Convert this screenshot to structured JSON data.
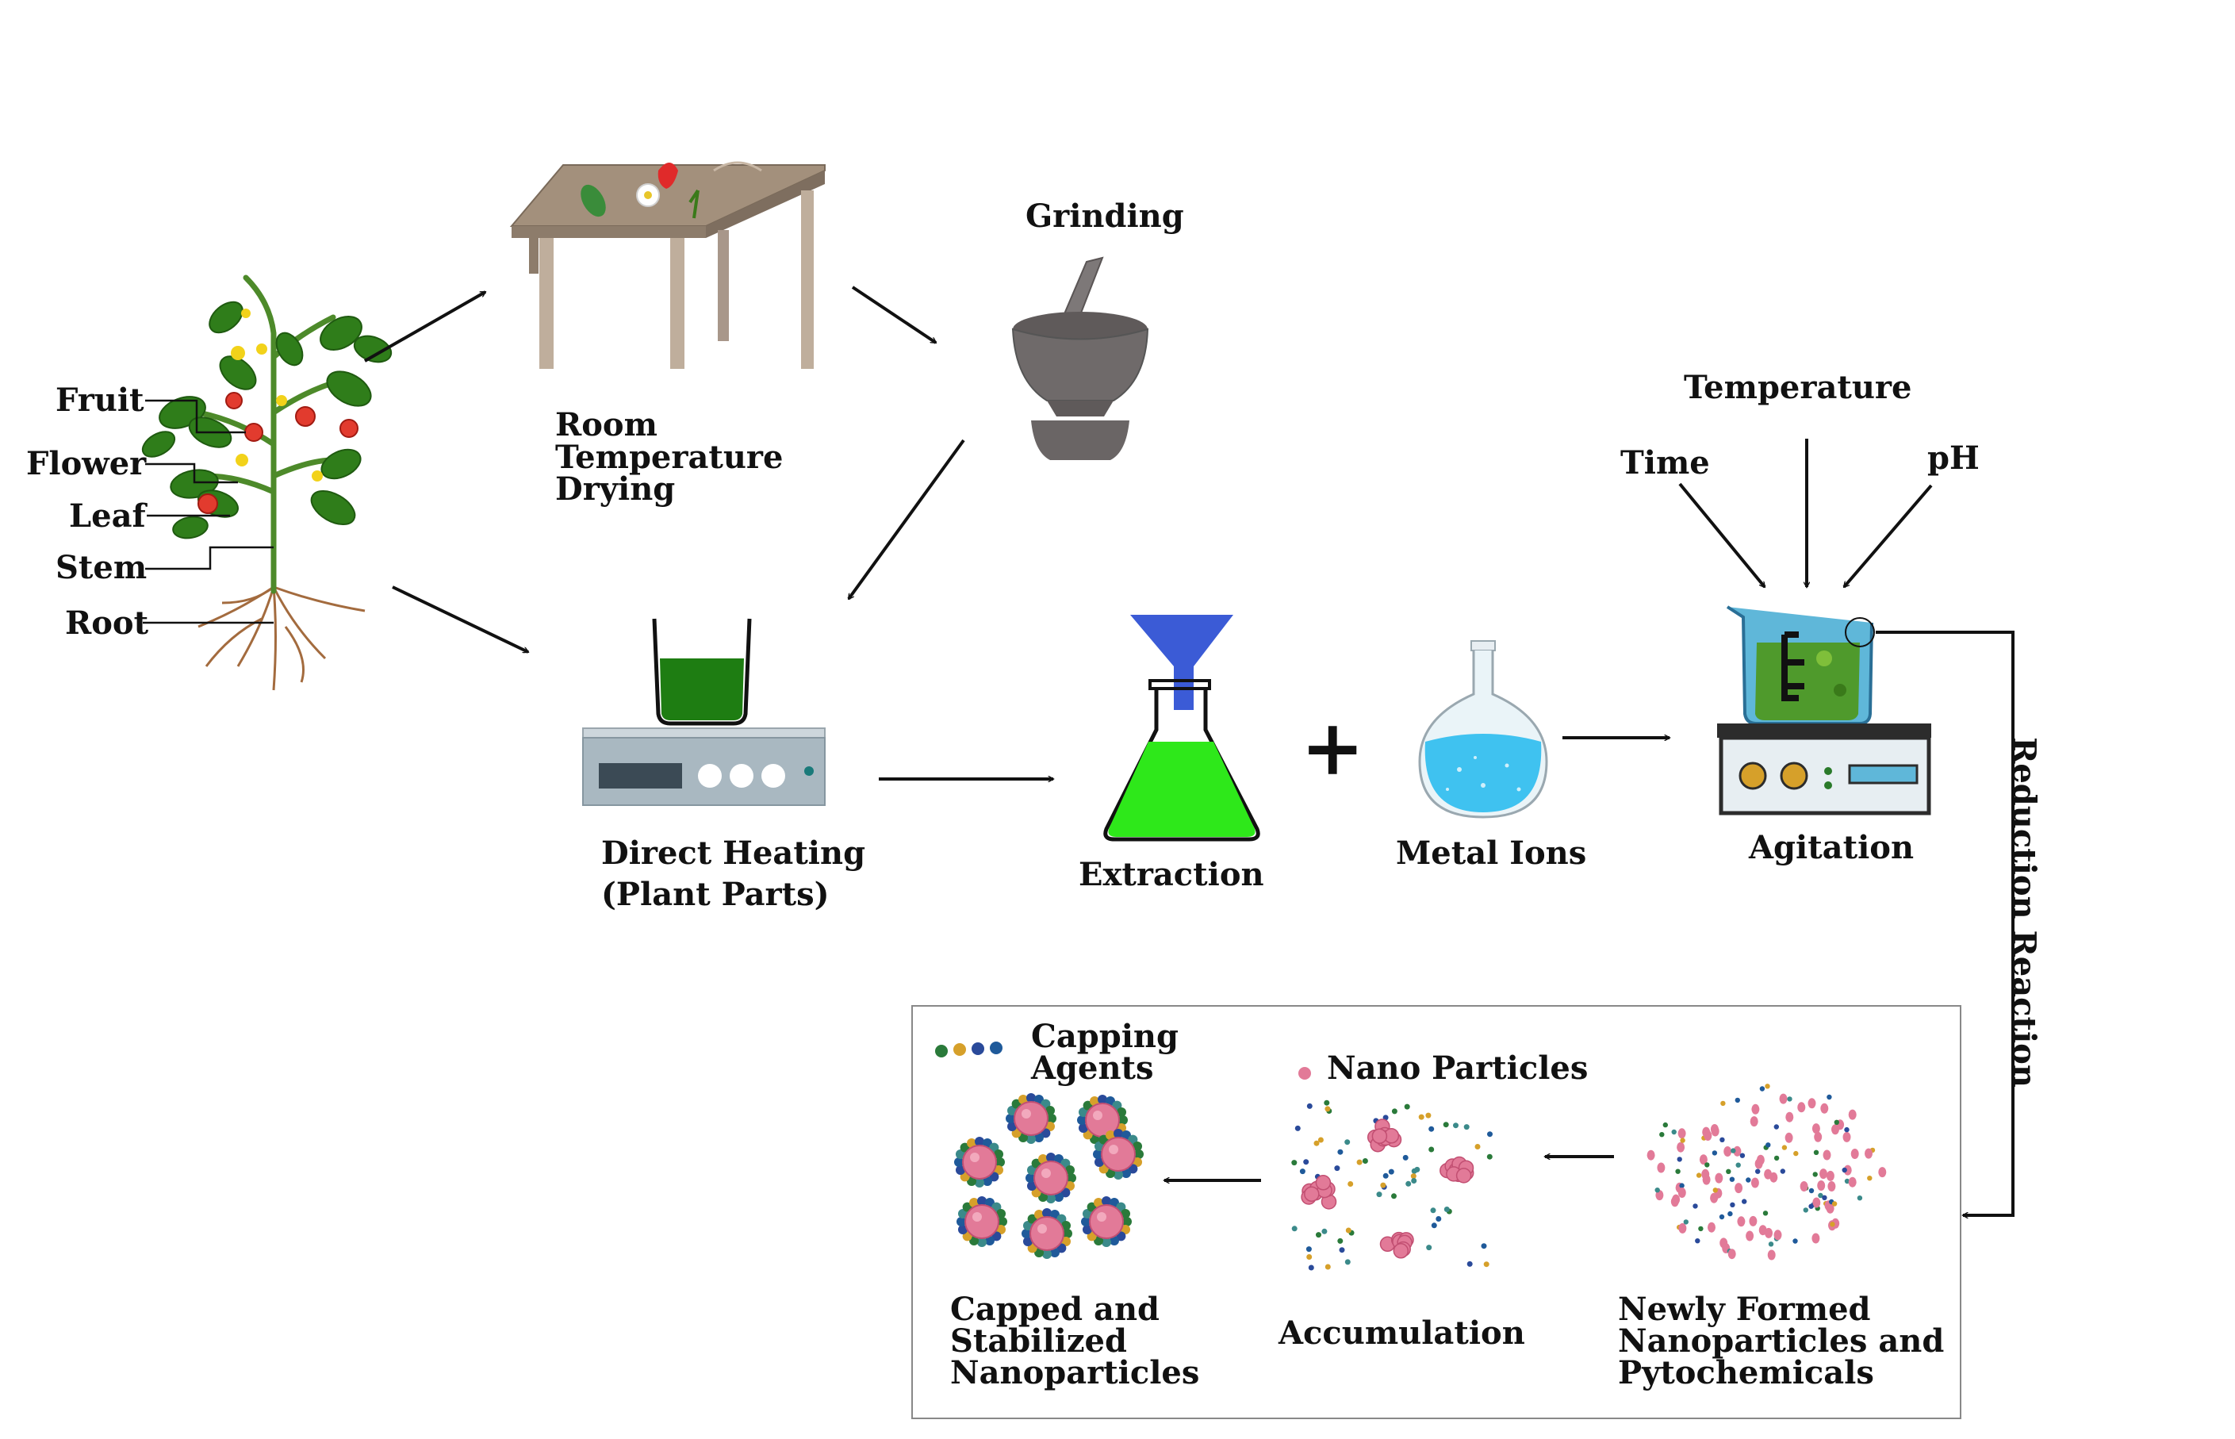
{
  "labels": {
    "fruit": "Fruit",
    "flower": "Flower",
    "leaf": "Leaf",
    "stem": "Stem",
    "root": "Root",
    "drying": [
      "Room",
      "Temperature",
      "Drying"
    ],
    "grinding": "Grinding",
    "direct_heating": [
      "Direct Heating",
      "(Plant Parts)"
    ],
    "extraction": "Extraction",
    "plus": "+",
    "metal_ions": "Metal Ions",
    "temperature": "Temperature",
    "time": "Time",
    "ph": "pH",
    "agitation": "Agitation",
    "reduction_reaction": "Reduction Reaction",
    "capping_agents": [
      "Capping",
      "Agents"
    ],
    "nano_particles": "Nano Particles",
    "capped": [
      "Capped and",
      "Stabilized",
      "Nanoparticles"
    ],
    "accumulation": "Accumulation",
    "newly_formed": [
      "Newly Formed",
      "Nanoparticles and",
      "Pytochemicals"
    ]
  },
  "colors": {
    "ink": "#111111",
    "table": "#9c8a78",
    "mortar": "#6f6a6a",
    "plant_green": "#2f7d1a",
    "fruit_red": "#e23b2e",
    "extract_green": "#1e7d12",
    "flask_green": "#2ee81a",
    "funnel_blue": "#3b5bd6",
    "metal_blue": "#3fc2f0",
    "nano_pink": "#e27a98"
  }
}
